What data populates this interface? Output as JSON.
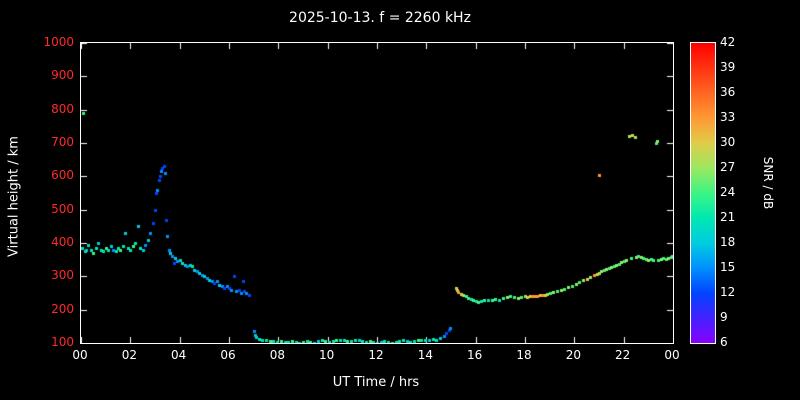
{
  "title": "2025-10-13. f = 2260 kHz",
  "axes": {
    "xlabel": "UT Time / hrs",
    "ylabel": "Virtual height / km",
    "xlim": [
      0,
      24
    ],
    "ylim": [
      100,
      1000
    ],
    "xticks": [
      0,
      2,
      4,
      6,
      8,
      10,
      12,
      14,
      16,
      18,
      20,
      22,
      24
    ],
    "xtick_labels": [
      "00",
      "02",
      "04",
      "06",
      "08",
      "10",
      "12",
      "14",
      "16",
      "18",
      "20",
      "22",
      "00"
    ],
    "yticks": [
      100,
      200,
      300,
      400,
      500,
      600,
      700,
      800,
      900,
      1000
    ],
    "ytick_label_color": "#ff2a2a",
    "xtick_label_color": "#ffffff"
  },
  "colorbar": {
    "label": "SNR / dB",
    "min": 6,
    "max": 42,
    "ticks": [
      6,
      9,
      12,
      15,
      18,
      21,
      24,
      27,
      30,
      33,
      36,
      39,
      42
    ],
    "stops": [
      {
        "v": 6,
        "c": "#8800ff"
      },
      {
        "v": 9,
        "c": "#4422ff"
      },
      {
        "v": 12,
        "c": "#0044ff"
      },
      {
        "v": 15,
        "c": "#0090ff"
      },
      {
        "v": 18,
        "c": "#00cce0"
      },
      {
        "v": 21,
        "c": "#00e8b0"
      },
      {
        "v": 24,
        "c": "#3cf584"
      },
      {
        "v": 27,
        "c": "#9ce860"
      },
      {
        "v": 30,
        "c": "#e0cc48"
      },
      {
        "v": 33,
        "c": "#ff9933"
      },
      {
        "v": 36,
        "c": "#ff6622"
      },
      {
        "v": 39,
        "c": "#ff3311"
      },
      {
        "v": 42,
        "c": "#ff0000"
      }
    ]
  },
  "chart_data": {
    "type": "scatter",
    "title": "2025-10-13. f = 2260 kHz",
    "xlabel": "UT Time / hrs",
    "ylabel": "Virtual height / km",
    "xlim": [
      0,
      24
    ],
    "ylim": [
      100,
      1000
    ],
    "color_value": "SNR / dB",
    "points": [
      [
        0.05,
        385,
        21
      ],
      [
        0.1,
        790,
        24
      ],
      [
        0.15,
        375,
        21
      ],
      [
        0.2,
        380,
        18
      ],
      [
        0.3,
        395,
        21
      ],
      [
        0.4,
        380,
        21
      ],
      [
        0.5,
        370,
        24
      ],
      [
        0.6,
        385,
        21
      ],
      [
        0.7,
        400,
        18
      ],
      [
        0.8,
        380,
        21
      ],
      [
        0.9,
        375,
        21
      ],
      [
        1.0,
        385,
        24
      ],
      [
        1.1,
        380,
        21
      ],
      [
        1.2,
        390,
        18
      ],
      [
        1.3,
        380,
        15
      ],
      [
        1.4,
        375,
        21
      ],
      [
        1.5,
        385,
        21
      ],
      [
        1.6,
        380,
        24
      ],
      [
        1.7,
        390,
        21
      ],
      [
        1.8,
        430,
        18
      ],
      [
        1.9,
        385,
        21
      ],
      [
        2.0,
        380,
        21
      ],
      [
        2.1,
        390,
        24
      ],
      [
        2.2,
        400,
        21
      ],
      [
        2.3,
        450,
        18
      ],
      [
        2.4,
        385,
        21
      ],
      [
        2.5,
        380,
        18
      ],
      [
        2.6,
        395,
        15
      ],
      [
        2.7,
        410,
        18
      ],
      [
        2.8,
        430,
        15
      ],
      [
        2.9,
        460,
        12
      ],
      [
        3.0,
        500,
        12
      ],
      [
        3.05,
        550,
        12
      ],
      [
        3.1,
        560,
        15
      ],
      [
        3.15,
        590,
        12
      ],
      [
        3.2,
        600,
        12
      ],
      [
        3.25,
        615,
        15
      ],
      [
        3.3,
        625,
        12
      ],
      [
        3.35,
        630,
        12
      ],
      [
        3.4,
        610,
        15
      ],
      [
        3.45,
        470,
        12
      ],
      [
        3.5,
        420,
        15
      ],
      [
        3.55,
        380,
        15
      ],
      [
        3.6,
        370,
        18
      ],
      [
        3.7,
        360,
        15
      ],
      [
        3.75,
        340,
        12
      ],
      [
        3.8,
        355,
        18
      ],
      [
        3.9,
        345,
        15
      ],
      [
        4.0,
        350,
        18
      ],
      [
        4.1,
        340,
        21
      ],
      [
        4.2,
        335,
        18
      ],
      [
        4.3,
        330,
        15
      ],
      [
        4.4,
        335,
        18
      ],
      [
        4.5,
        330,
        21
      ],
      [
        4.6,
        320,
        18
      ],
      [
        4.7,
        315,
        15
      ],
      [
        4.8,
        310,
        18
      ],
      [
        4.9,
        305,
        15
      ],
      [
        5.0,
        300,
        18
      ],
      [
        5.1,
        295,
        15
      ],
      [
        5.2,
        290,
        18
      ],
      [
        5.3,
        285,
        15
      ],
      [
        5.4,
        280,
        12
      ],
      [
        5.5,
        285,
        15
      ],
      [
        5.6,
        275,
        18
      ],
      [
        5.7,
        270,
        15
      ],
      [
        5.8,
        265,
        12
      ],
      [
        5.9,
        270,
        15
      ],
      [
        6.0,
        265,
        12
      ],
      [
        6.1,
        260,
        15
      ],
      [
        6.2,
        300,
        12
      ],
      [
        6.3,
        255,
        15
      ],
      [
        6.4,
        260,
        12
      ],
      [
        6.5,
        250,
        15
      ],
      [
        6.55,
        285,
        12
      ],
      [
        6.6,
        255,
        12
      ],
      [
        6.7,
        250,
        15
      ],
      [
        6.8,
        245,
        12
      ],
      [
        7.0,
        135,
        15
      ],
      [
        7.05,
        125,
        18
      ],
      [
        7.1,
        118,
        18
      ],
      [
        7.2,
        112,
        21
      ],
      [
        7.35,
        110,
        21
      ],
      [
        7.5,
        108,
        21
      ],
      [
        7.65,
        105,
        24
      ],
      [
        7.8,
        105,
        21
      ],
      [
        7.95,
        103,
        21
      ],
      [
        8.1,
        105,
        24
      ],
      [
        8.25,
        103,
        21
      ],
      [
        8.4,
        102,
        21
      ],
      [
        8.55,
        105,
        24
      ],
      [
        8.7,
        103,
        21
      ],
      [
        8.85,
        100,
        21
      ],
      [
        9.0,
        103,
        24
      ],
      [
        9.15,
        105,
        21
      ],
      [
        9.3,
        102,
        24
      ],
      [
        9.45,
        100,
        21
      ],
      [
        9.6,
        105,
        18
      ],
      [
        9.75,
        108,
        21
      ],
      [
        9.9,
        105,
        24
      ],
      [
        10.05,
        103,
        21
      ],
      [
        10.2,
        105,
        21
      ],
      [
        10.35,
        108,
        24
      ],
      [
        10.5,
        110,
        21
      ],
      [
        10.65,
        108,
        21
      ],
      [
        10.8,
        105,
        24
      ],
      [
        10.95,
        107,
        21
      ],
      [
        11.1,
        110,
        21
      ],
      [
        11.25,
        108,
        18
      ],
      [
        11.4,
        105,
        21
      ],
      [
        11.55,
        103,
        21
      ],
      [
        11.7,
        105,
        24
      ],
      [
        11.85,
        102,
        21
      ],
      [
        12.0,
        100,
        21
      ],
      [
        12.15,
        103,
        18
      ],
      [
        12.3,
        105,
        21
      ],
      [
        12.45,
        102,
        21
      ],
      [
        12.6,
        100,
        24
      ],
      [
        12.75,
        103,
        21
      ],
      [
        12.9,
        105,
        21
      ],
      [
        13.05,
        108,
        21
      ],
      [
        13.2,
        105,
        18
      ],
      [
        13.35,
        103,
        21
      ],
      [
        13.5,
        105,
        21
      ],
      [
        13.65,
        108,
        24
      ],
      [
        13.8,
        110,
        21
      ],
      [
        13.95,
        108,
        21
      ],
      [
        14.1,
        110,
        18
      ],
      [
        14.25,
        112,
        21
      ],
      [
        14.4,
        110,
        21
      ],
      [
        14.55,
        115,
        18
      ],
      [
        14.7,
        120,
        15
      ],
      [
        14.8,
        130,
        12
      ],
      [
        14.9,
        140,
        12
      ],
      [
        14.95,
        145,
        15
      ],
      [
        15.2,
        265,
        27
      ],
      [
        15.25,
        258,
        30
      ],
      [
        15.3,
        252,
        33
      ],
      [
        15.4,
        248,
        30
      ],
      [
        15.5,
        245,
        27
      ],
      [
        15.6,
        240,
        24
      ],
      [
        15.7,
        235,
        24
      ],
      [
        15.8,
        232,
        21
      ],
      [
        15.9,
        228,
        24
      ],
      [
        16.0,
        225,
        21
      ],
      [
        16.1,
        222,
        24
      ],
      [
        16.2,
        225,
        21
      ],
      [
        16.35,
        228,
        24
      ],
      [
        16.5,
        230,
        21
      ],
      [
        16.65,
        228,
        24
      ],
      [
        16.8,
        232,
        24
      ],
      [
        16.95,
        230,
        21
      ],
      [
        17.1,
        235,
        24
      ],
      [
        17.25,
        238,
        27
      ],
      [
        17.4,
        240,
        24
      ],
      [
        17.55,
        238,
        24
      ],
      [
        17.7,
        235,
        27
      ],
      [
        17.85,
        238,
        24
      ],
      [
        18.0,
        240,
        27
      ],
      [
        18.1,
        238,
        30
      ],
      [
        18.2,
        240,
        30
      ],
      [
        18.3,
        242,
        33
      ],
      [
        18.4,
        240,
        33
      ],
      [
        18.5,
        242,
        33
      ],
      [
        18.6,
        245,
        30
      ],
      [
        18.7,
        243,
        33
      ],
      [
        18.8,
        245,
        30
      ],
      [
        18.9,
        248,
        27
      ],
      [
        19.0,
        250,
        24
      ],
      [
        19.15,
        252,
        27
      ],
      [
        19.3,
        255,
        24
      ],
      [
        19.45,
        258,
        27
      ],
      [
        19.6,
        262,
        24
      ],
      [
        19.75,
        268,
        27
      ],
      [
        19.9,
        272,
        24
      ],
      [
        20.05,
        278,
        27
      ],
      [
        20.2,
        282,
        24
      ],
      [
        20.35,
        288,
        27
      ],
      [
        20.5,
        292,
        30
      ],
      [
        20.65,
        298,
        27
      ],
      [
        20.8,
        305,
        33
      ],
      [
        20.9,
        308,
        30
      ],
      [
        21.0,
        310,
        27
      ],
      [
        21.0,
        605,
        33
      ],
      [
        21.1,
        315,
        27
      ],
      [
        21.2,
        318,
        24
      ],
      [
        21.3,
        322,
        27
      ],
      [
        21.4,
        325,
        24
      ],
      [
        21.5,
        328,
        27
      ],
      [
        21.6,
        330,
        24
      ],
      [
        21.7,
        335,
        27
      ],
      [
        21.8,
        338,
        24
      ],
      [
        21.9,
        342,
        27
      ],
      [
        22.0,
        345,
        24
      ],
      [
        22.1,
        350,
        27
      ],
      [
        22.2,
        720,
        27
      ],
      [
        22.3,
        355,
        24
      ],
      [
        22.35,
        725,
        30
      ],
      [
        22.45,
        718,
        27
      ],
      [
        22.5,
        358,
        27
      ],
      [
        22.6,
        360,
        24
      ],
      [
        22.7,
        358,
        27
      ],
      [
        22.8,
        355,
        24
      ],
      [
        22.9,
        352,
        24
      ],
      [
        23.0,
        350,
        27
      ],
      [
        23.1,
        352,
        24
      ],
      [
        23.2,
        350,
        24
      ],
      [
        23.3,
        700,
        24
      ],
      [
        23.35,
        705,
        27
      ],
      [
        23.4,
        348,
        24
      ],
      [
        23.5,
        352,
        27
      ],
      [
        23.6,
        355,
        24
      ],
      [
        23.7,
        352,
        24
      ],
      [
        23.8,
        355,
        27
      ],
      [
        23.9,
        358,
        24
      ],
      [
        23.95,
        360,
        24
      ]
    ]
  }
}
